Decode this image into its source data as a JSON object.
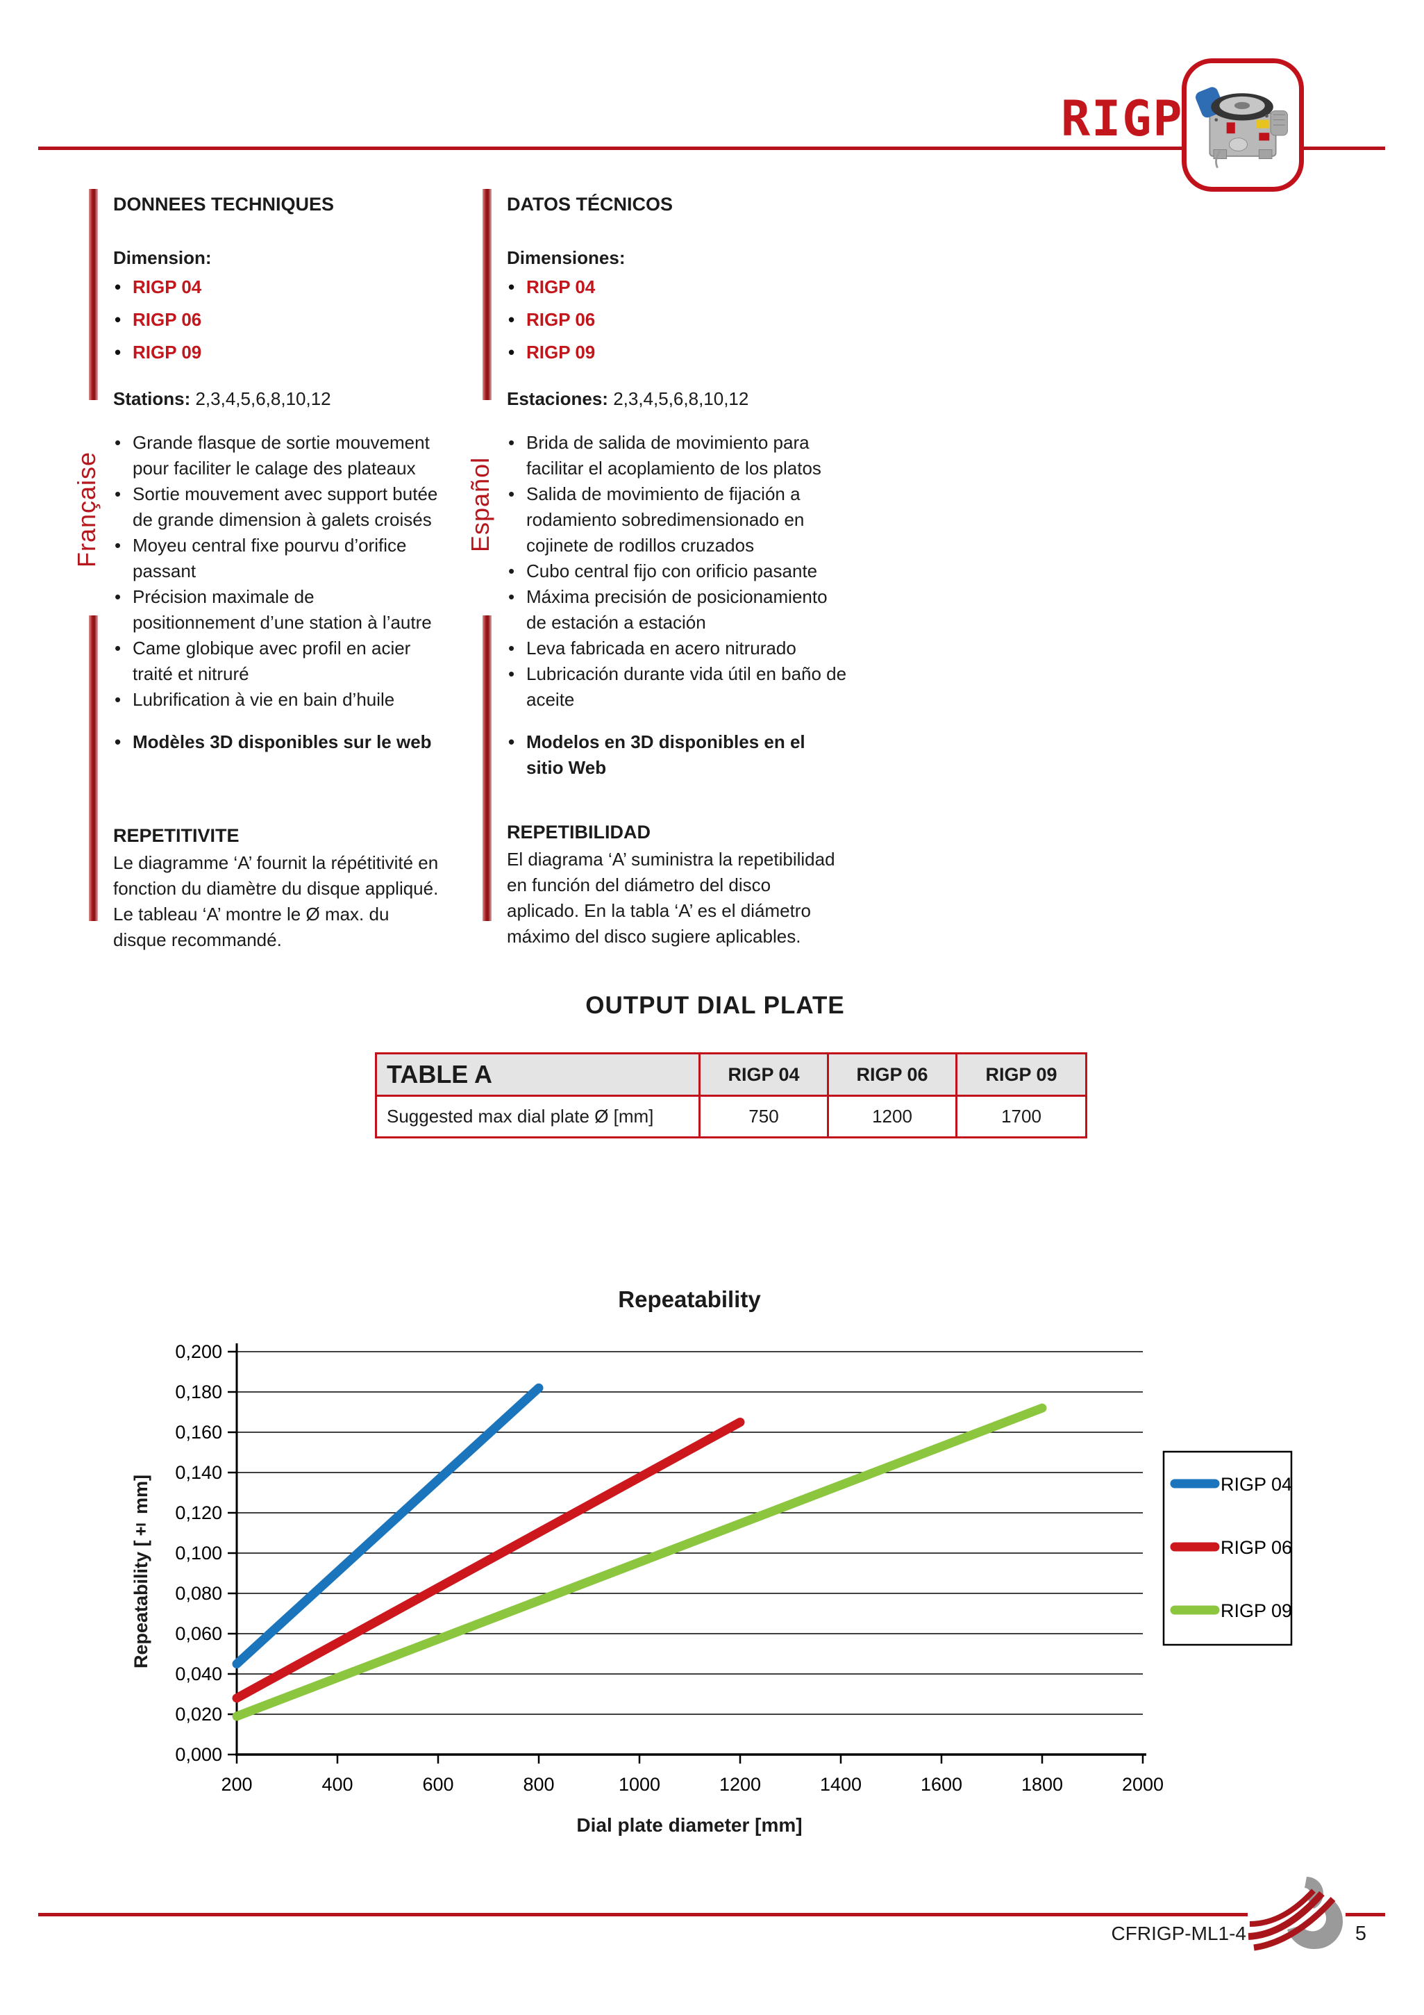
{
  "page": {
    "bullet_char": "•",
    "header": {
      "title": "RIGP"
    },
    "columns": {
      "french": {
        "lang_label": "Française",
        "section_title": "DONNEES TECHNIQUES",
        "dimension_label": "Dimension:",
        "models": [
          "RIGP 04",
          "RIGP 06",
          "RIGP 09"
        ],
        "stations_label": "Stations:",
        "stations_value": "2,3,4,5,6,8,10,12",
        "features": [
          "Grande flasque de sortie mouvement pour faciliter le calage des plateaux",
          "Sortie mouvement avec support butée de grande dimension à galets croisés",
          "Moyeu central fixe pourvu d’orifice passant",
          "Précision maximale de positionnement d’une station à l’autre",
          "Came globique avec profil en acier traité et nitruré",
          "Lubrification à vie en bain d’huile"
        ],
        "web_note": "Modèles 3D disponibles sur le web",
        "repeat_title": "REPETITIVITE",
        "repeat_text": "Le diagramme ‘A’ fournit la répétitivité en fonction du diamètre du disque appliqué. Le tableau ‘A’ montre le Ø max. du disque recommandé."
      },
      "spanish": {
        "lang_label": "Español",
        "section_title": "DATOS TÉCNICOS",
        "dimension_label": "Dimensiones:",
        "models": [
          "RIGP 04",
          "RIGP 06",
          "RIGP 09"
        ],
        "stations_label": "Estaciones:",
        "stations_value": "2,3,4,5,6,8,10,12",
        "features": [
          "Brida de salida de movimiento para facilitar el acoplamiento de los platos",
          "Salida de movimiento de fijación a rodamiento sobredimensionado en cojinete de rodillos cruzados",
          "Cubo central fijo con orificio pasante",
          "Máxima precisión de posicionamiento de estación a estación",
          "Leva fabricada en acero nitrurado",
          "Lubricación durante vida útil en baño de aceite"
        ],
        "web_note": "Modelos en 3D disponibles en el sitio Web",
        "repeat_title": "REPETIBILIDAD",
        "repeat_text": "El diagrama ‘A’ suministra la repetibilidad en función del diámetro del disco aplicado. En la tabla ‘A’ es el diámetro máximo del disco sugiere aplicables."
      }
    },
    "output_dial_plate": {
      "title": "OUTPUT DIAL PLATE",
      "table": {
        "header": [
          "TABLE A",
          "RIGP 04",
          "RIGP 06",
          "RIGP 09"
        ],
        "row_label": "Suggested max dial plate Ø [mm]",
        "values": [
          "750",
          "1200",
          "1700"
        ]
      }
    },
    "footer": {
      "doc_code": "CFRIGP-ML1-4",
      "page_number": "5"
    },
    "accent_color": "#c1121c"
  },
  "chart_data": {
    "type": "line",
    "title": "Repeatability",
    "xlabel": "Dial plate diameter [mm]",
    "ylabel": "Repeatability [± mm]",
    "xlim": [
      200,
      2000
    ],
    "ylim": [
      0,
      0.2
    ],
    "xtick": 200,
    "ytick": 0.02,
    "x_tick_labels": [
      "200",
      "400",
      "600",
      "800",
      "1000",
      "1200",
      "1400",
      "1600",
      "1800",
      "2000"
    ],
    "y_tick_labels": [
      "0,000",
      "0,020",
      "0,040",
      "0,060",
      "0,080",
      "0,100",
      "0,120",
      "0,140",
      "0,160",
      "0,180",
      "0,200"
    ],
    "grid": "horizontal",
    "legend_position": "right",
    "series": [
      {
        "name": "RIGP 04",
        "color": "#1b75bc",
        "points": [
          [
            200,
            0.045
          ],
          [
            800,
            0.182
          ]
        ]
      },
      {
        "name": "RIGP 06",
        "color": "#cc171d",
        "points": [
          [
            200,
            0.028
          ],
          [
            1200,
            0.165
          ]
        ]
      },
      {
        "name": "RIGP 09",
        "color": "#8cc63e",
        "points": [
          [
            200,
            0.019
          ],
          [
            1800,
            0.172
          ]
        ]
      }
    ]
  }
}
